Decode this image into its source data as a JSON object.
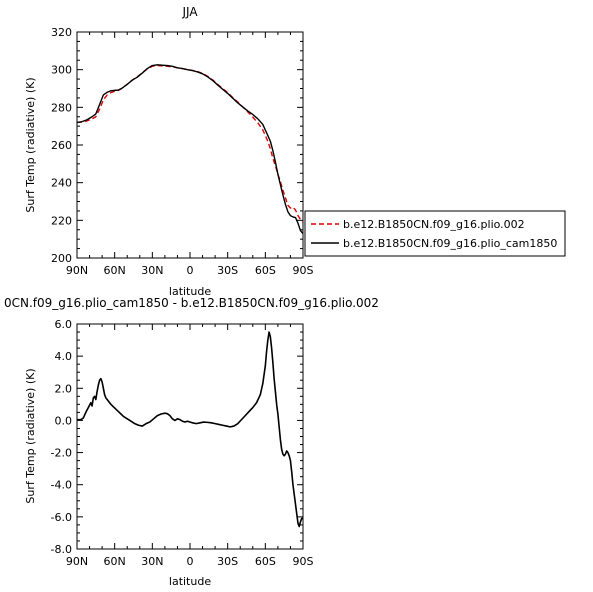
{
  "chart_data": [
    {
      "type": "line",
      "title": "JJA",
      "xlabel": "latitude",
      "ylabel": "Surf Temp (radiative) (K)",
      "xlim": [
        90,
        -90
      ],
      "ylim": [
        200,
        320
      ],
      "x_ticks": [
        {
          "value": 90,
          "label": "90N"
        },
        {
          "value": 60,
          "label": "60N"
        },
        {
          "value": 30,
          "label": "30N"
        },
        {
          "value": 0,
          "label": "0"
        },
        {
          "value": -30,
          "label": "30S"
        },
        {
          "value": -60,
          "label": "60S"
        },
        {
          "value": -90,
          "label": "90S"
        }
      ],
      "y_ticks": [
        {
          "value": 200,
          "label": "200"
        },
        {
          "value": 220,
          "label": "220"
        },
        {
          "value": 240,
          "label": "240"
        },
        {
          "value": 260,
          "label": "260"
        },
        {
          "value": 280,
          "label": "280"
        },
        {
          "value": 300,
          "label": "300"
        },
        {
          "value": 320,
          "label": "320"
        }
      ],
      "legend_position": "outside-right-bottom",
      "grid": false,
      "series": [
        {
          "name": "b.e12.B1850CN.f09_g16.plio.002",
          "color": "#e00000",
          "dash": "dashed",
          "x": [
            90,
            86,
            82,
            78,
            75,
            72,
            69,
            66,
            63,
            60,
            57,
            54,
            50,
            46,
            42,
            38,
            34,
            30,
            26,
            22,
            18,
            14,
            10,
            6,
            2,
            -2,
            -6,
            -10,
            -14,
            -18,
            -22,
            -26,
            -30,
            -34,
            -38,
            -42,
            -46,
            -50,
            -54,
            -58,
            -62,
            -64,
            -66,
            -68,
            -70,
            -72,
            -74,
            -76,
            -78,
            -80,
            -82,
            -84,
            -86,
            -88,
            -90
          ],
          "y": [
            272,
            272.2,
            272.8,
            273.8,
            275,
            279,
            284,
            286.5,
            287.8,
            288.5,
            289,
            290.2,
            292.2,
            294.5,
            296.2,
            298.4,
            300.4,
            301.8,
            302.2,
            302,
            301.8,
            301.5,
            301,
            300.6,
            300,
            299.6,
            299,
            298,
            296.5,
            294.6,
            292.2,
            290,
            287.8,
            285.2,
            282.8,
            280.2,
            277.6,
            274.8,
            271.8,
            268,
            262,
            258,
            253,
            249,
            244.5,
            240.5,
            236,
            232,
            228,
            226.5,
            227,
            225.5,
            222.5,
            220.5,
            219
          ]
        },
        {
          "name": "b.e12.B1850CN.f09_g16.plio_cam1850",
          "color": "#000000",
          "dash": "solid",
          "x": [
            90,
            86,
            82,
            78,
            75,
            72,
            69,
            66,
            63,
            60,
            57,
            54,
            50,
            46,
            42,
            38,
            34,
            30,
            26,
            22,
            18,
            14,
            10,
            6,
            2,
            -2,
            -6,
            -10,
            -14,
            -18,
            -22,
            -26,
            -30,
            -34,
            -38,
            -42,
            -46,
            -50,
            -54,
            -58,
            -62,
            -64,
            -66,
            -68,
            -70,
            -72,
            -74,
            -76,
            -78,
            -80,
            -82,
            -84,
            -86,
            -88,
            -90
          ],
          "y": [
            272,
            272.4,
            273.4,
            275,
            276.5,
            281.5,
            286.6,
            288,
            288.8,
            289,
            289.2,
            290.2,
            292.2,
            294.4,
            296,
            298.2,
            300.6,
            302.2,
            302.6,
            302.4,
            302.2,
            301.8,
            301,
            300.6,
            300,
            299.5,
            298.8,
            297.8,
            296.2,
            294.3,
            291.9,
            289.6,
            287.4,
            284.9,
            282.4,
            280.2,
            278.1,
            276.2,
            273.9,
            270.9,
            265,
            262,
            257,
            251,
            244.5,
            239,
            233.5,
            228.5,
            224.5,
            222.5,
            221.8,
            221.5,
            218.5,
            214.5,
            213
          ]
        }
      ]
    },
    {
      "type": "line",
      "title": "0CN.f09_g16.plio_cam1850 - b.e12.B1850CN.f09_g16.plio.002",
      "xlabel": "latitude",
      "ylabel": "Surf Temp (radiative) (K)",
      "xlim": [
        90,
        -90
      ],
      "ylim": [
        -8,
        6
      ],
      "x_ticks": [
        {
          "value": 90,
          "label": "90N"
        },
        {
          "value": 60,
          "label": "60N"
        },
        {
          "value": 30,
          "label": "30N"
        },
        {
          "value": 0,
          "label": "0"
        },
        {
          "value": -30,
          "label": "30S"
        },
        {
          "value": -60,
          "label": "60S"
        },
        {
          "value": -90,
          "label": "90S"
        }
      ],
      "y_ticks": [
        {
          "value": 6,
          "label": "6.0"
        },
        {
          "value": 4,
          "label": "4.0"
        },
        {
          "value": 2,
          "label": "2.0"
        },
        {
          "value": 0,
          "label": "0.0"
        },
        {
          "value": -2,
          "label": "-2.0"
        },
        {
          "value": -4,
          "label": "-4.0"
        },
        {
          "value": -6,
          "label": "-6.0"
        },
        {
          "value": -8,
          "label": "-8.0"
        }
      ],
      "grid": false,
      "series": [
        {
          "color": "#000000",
          "dash": "solid",
          "x": [
            90,
            87,
            85,
            83,
            81,
            79,
            78,
            77,
            76,
            75,
            74,
            73,
            72,
            71,
            70,
            69,
            68,
            67,
            66,
            65,
            63,
            61,
            59,
            57,
            55,
            53,
            50,
            47,
            44,
            41,
            38,
            35,
            32,
            29,
            26,
            23,
            20,
            18,
            16,
            14,
            12,
            10,
            8,
            6,
            4,
            2,
            0,
            -2,
            -5,
            -8,
            -11,
            -14,
            -17,
            -20,
            -23,
            -26,
            -29,
            -32,
            -35,
            -38,
            -41,
            -44,
            -47,
            -50,
            -53,
            -56,
            -58,
            -60,
            -61,
            -62,
            -63,
            -64,
            -65,
            -66,
            -67,
            -68,
            -69,
            -70,
            -71,
            -72,
            -73,
            -74,
            -75,
            -76,
            -77,
            -78,
            -79,
            -80,
            -81,
            -82,
            -83,
            -84,
            -85,
            -86,
            -87,
            -88,
            -89,
            -90
          ],
          "y": [
            0.05,
            0.05,
            0.15,
            0.5,
            0.8,
            1.1,
            0.9,
            1.4,
            1.5,
            1.3,
            1.8,
            2.2,
            2.5,
            2.6,
            2.4,
            2.0,
            1.6,
            1.4,
            1.3,
            1.2,
            1.0,
            0.85,
            0.7,
            0.55,
            0.4,
            0.25,
            0.1,
            -0.05,
            -0.2,
            -0.3,
            -0.35,
            -0.2,
            -0.1,
            0.1,
            0.3,
            0.4,
            0.45,
            0.42,
            0.3,
            0.1,
            0.0,
            0.1,
            0.05,
            -0.05,
            -0.1,
            -0.05,
            -0.1,
            -0.15,
            -0.2,
            -0.15,
            -0.1,
            -0.12,
            -0.15,
            -0.2,
            -0.25,
            -0.3,
            -0.35,
            -0.4,
            -0.35,
            -0.2,
            0.05,
            0.3,
            0.55,
            0.8,
            1.1,
            1.6,
            2.3,
            3.4,
            4.3,
            5.0,
            5.5,
            5.2,
            4.5,
            3.6,
            2.6,
            1.8,
            1.0,
            0.4,
            -0.4,
            -1.2,
            -1.8,
            -2.1,
            -2.2,
            -2.1,
            -1.9,
            -2.0,
            -2.2,
            -2.5,
            -3.2,
            -4.0,
            -4.6,
            -5.2,
            -5.8,
            -6.4,
            -6.6,
            -6.3,
            -6.1,
            -6.1
          ]
        }
      ]
    }
  ]
}
